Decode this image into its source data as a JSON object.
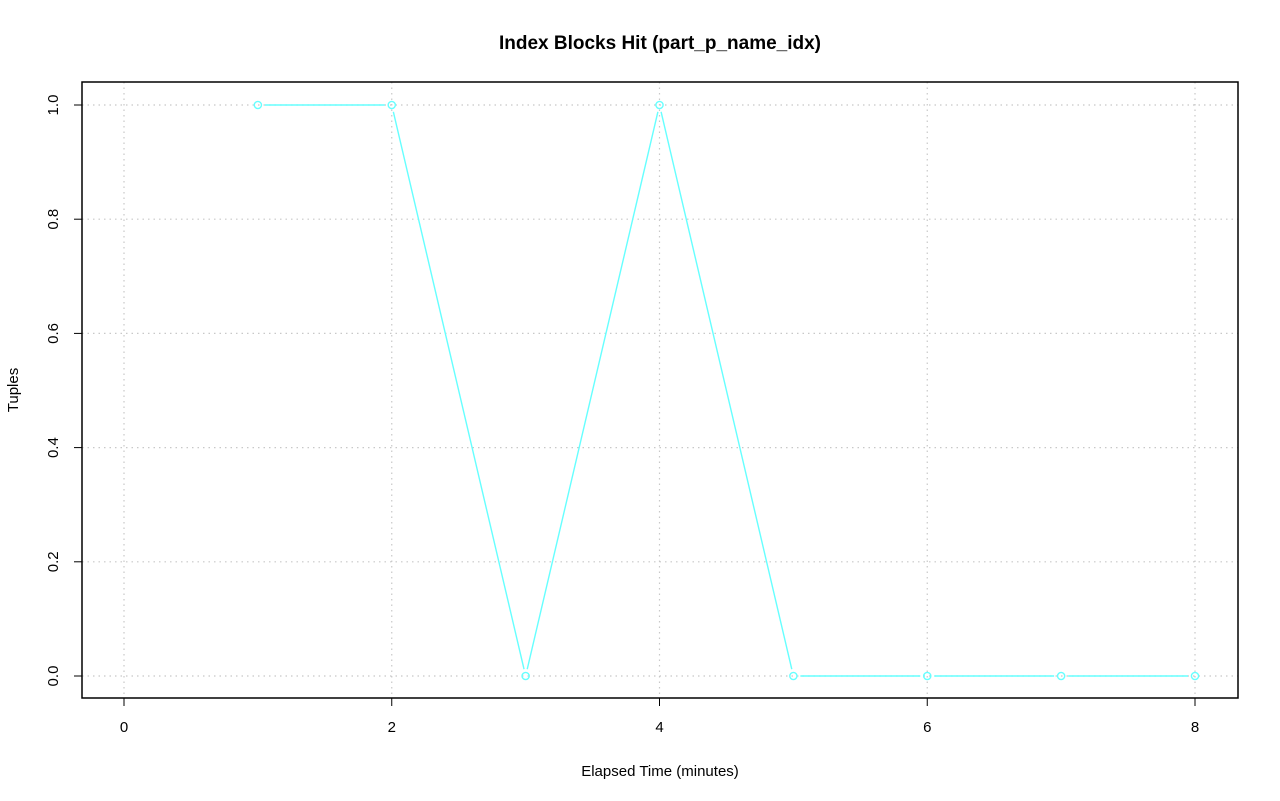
{
  "chart_data": {
    "type": "line",
    "title": "Index Blocks Hit (part_p_name_idx)",
    "xlabel": "Elapsed Time (minutes)",
    "ylabel": "Tuples",
    "xlim": [
      0,
      8
    ],
    "ylim": [
      0,
      1
    ],
    "x_ticks": [
      0,
      2,
      4,
      6,
      8
    ],
    "y_ticks": [
      0,
      0.2,
      0.4,
      0.6,
      0.8,
      1
    ],
    "x_tick_labels": [
      "0",
      "2",
      "4",
      "6",
      "8"
    ],
    "y_tick_labels": [
      "0.0",
      "0.2",
      "0.4",
      "0.6",
      "0.8",
      "1.0"
    ],
    "grid": true,
    "grid_style": "dotted",
    "markers": "open-circle",
    "series": [
      {
        "color": "#66ffff",
        "x": [
          1,
          2,
          3,
          4,
          5,
          6,
          7,
          8
        ],
        "y": [
          1,
          1,
          0,
          1,
          0,
          0,
          0,
          0
        ]
      }
    ]
  }
}
